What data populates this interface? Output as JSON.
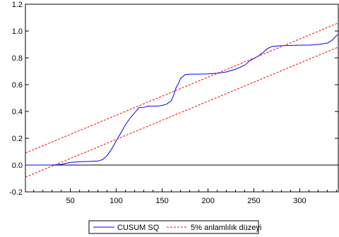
{
  "chart_data": {
    "type": "line",
    "title": "",
    "xlabel": "",
    "ylabel": "",
    "xlim": [
      1,
      342
    ],
    "ylim": [
      -0.2,
      1.2
    ],
    "x_ticks": [
      50,
      100,
      150,
      200,
      250,
      300
    ],
    "y_ticks": [
      -0.2,
      0.0,
      0.2,
      0.4,
      0.6,
      0.8,
      1.0,
      1.2
    ],
    "y_tick_labels": [
      "-0.2",
      "0.0",
      "0.2",
      "0.4",
      "0.6",
      "0.8",
      "1.0",
      "1.2"
    ],
    "reference_line_y": 0.0,
    "grid": false,
    "legend_position": "bottom-center",
    "series": [
      {
        "name": "CUSUM  SQ",
        "color": "#0000ff",
        "style": "solid",
        "x": [
          1,
          20,
          30,
          40,
          50,
          60,
          70,
          80,
          85,
          90,
          95,
          100,
          105,
          110,
          115,
          120,
          125,
          130,
          135,
          140,
          145,
          150,
          155,
          160,
          163,
          165,
          168,
          170,
          175,
          180,
          190,
          200,
          210,
          220,
          230,
          240,
          245,
          250,
          255,
          260,
          265,
          270,
          275,
          280,
          290,
          300,
          310,
          320,
          330,
          335,
          340,
          342
        ],
        "y": [
          0.0,
          0.0,
          0.0,
          0.005,
          0.02,
          0.025,
          0.027,
          0.03,
          0.04,
          0.07,
          0.12,
          0.18,
          0.24,
          0.3,
          0.35,
          0.39,
          0.43,
          0.43,
          0.44,
          0.44,
          0.44,
          0.445,
          0.455,
          0.48,
          0.53,
          0.575,
          0.61,
          0.645,
          0.675,
          0.678,
          0.678,
          0.68,
          0.685,
          0.695,
          0.715,
          0.745,
          0.775,
          0.795,
          0.815,
          0.84,
          0.87,
          0.885,
          0.888,
          0.89,
          0.893,
          0.895,
          0.895,
          0.9,
          0.91,
          0.93,
          0.965,
          0.975
        ]
      },
      {
        "name": "5% anlamlılık düzeyi",
        "color": "#ff0000",
        "style": "dashed",
        "x": [
          1,
          342
        ],
        "y": [
          0.09,
          1.06
        ]
      },
      {
        "name": "",
        "color": "#ff0000",
        "style": "dashed",
        "x": [
          1,
          342
        ],
        "y": [
          -0.09,
          0.88
        ]
      }
    ],
    "legend": [
      "CUSUM  SQ",
      "5% anlamlılık düzeyi"
    ]
  }
}
